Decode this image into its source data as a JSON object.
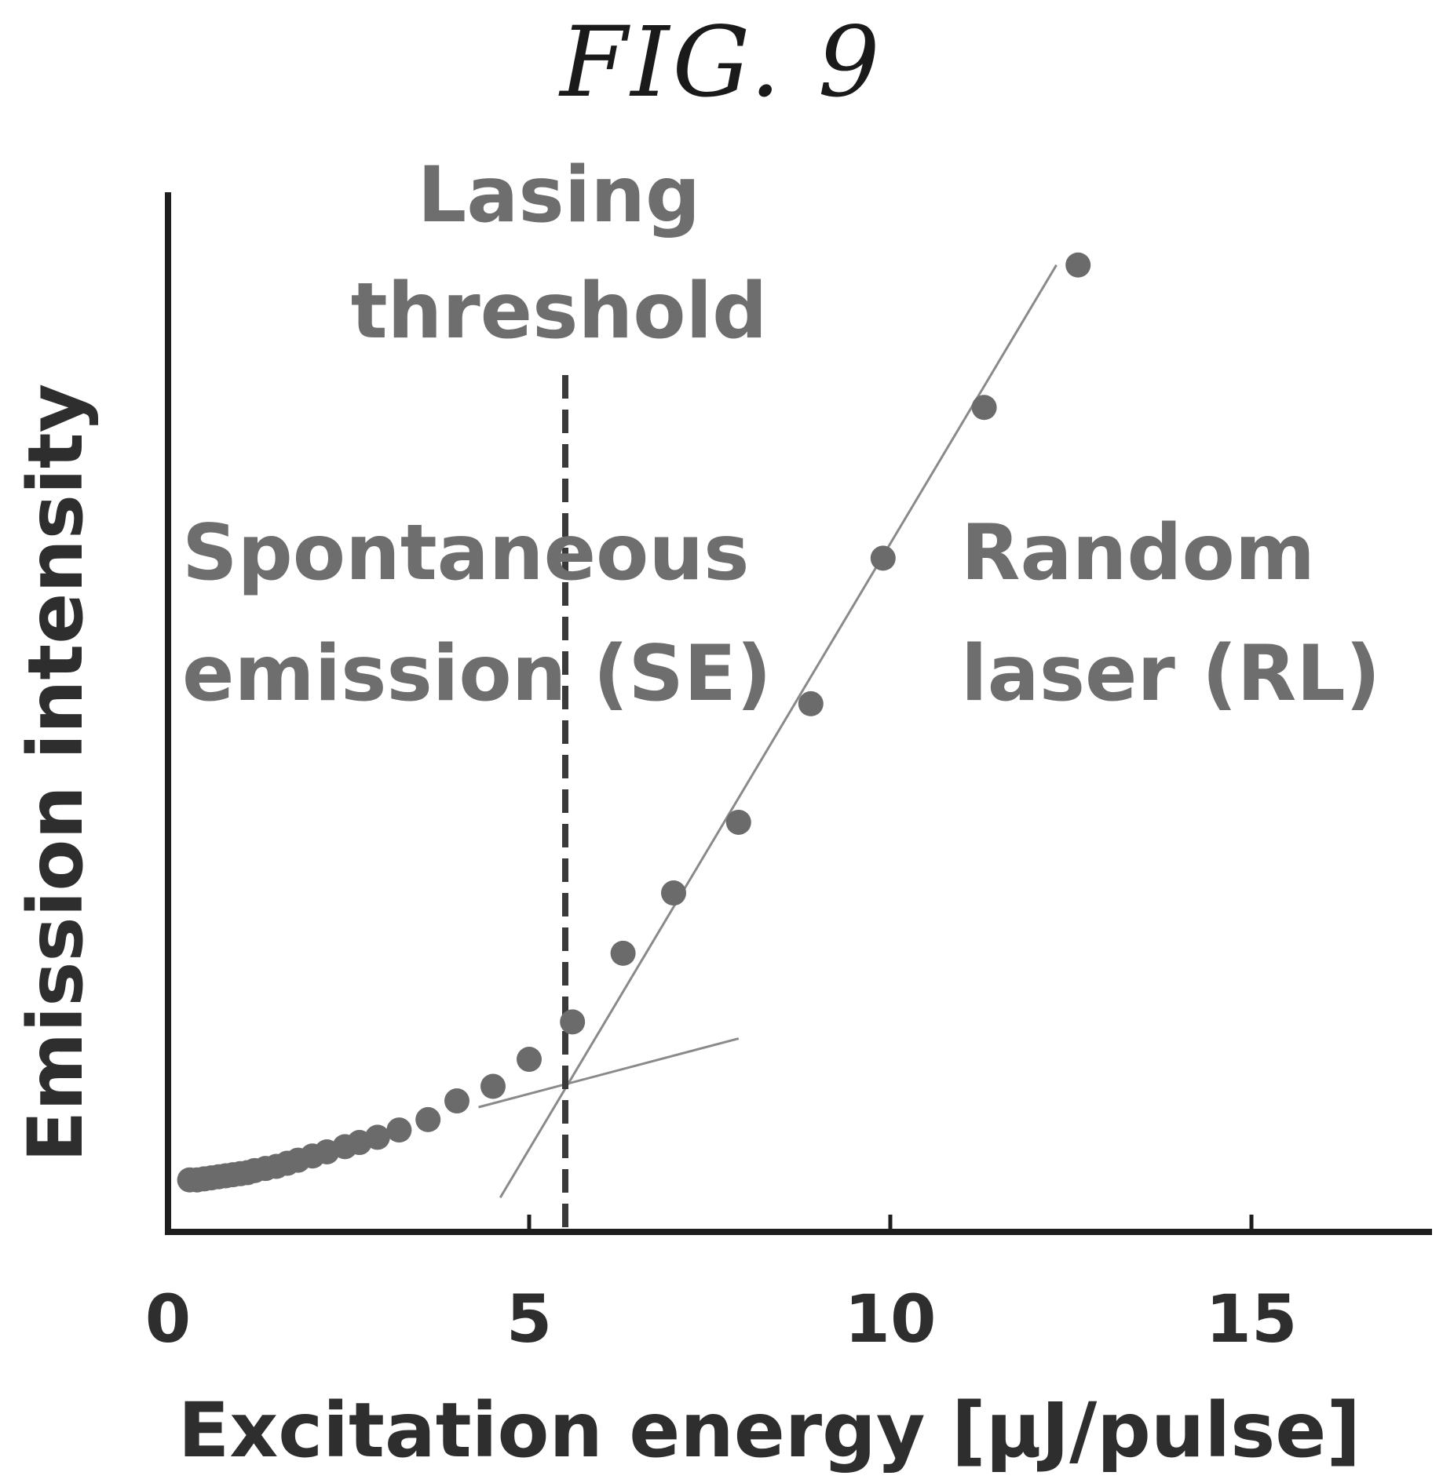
{
  "figure_title": "FIG. 9",
  "chart_data": {
    "type": "scatter",
    "title": "",
    "xlabel": "Excitation energy [μJ/pulse]",
    "ylabel": "Emission intensity",
    "xlim": [
      0,
      17.5
    ],
    "ylim": [
      0,
      100
    ],
    "x_ticks": [
      0,
      5,
      10,
      15
    ],
    "x_tick_labels": [
      "0",
      "5",
      "10",
      "15"
    ],
    "y_ticks_shown": false,
    "grid": false,
    "series": [
      {
        "points": [
          {
            "x": 0.3,
            "y": 5.0
          },
          {
            "x": 0.4,
            "y": 5.0
          },
          {
            "x": 0.5,
            "y": 5.1
          },
          {
            "x": 0.6,
            "y": 5.2
          },
          {
            "x": 0.7,
            "y": 5.3
          },
          {
            "x": 0.8,
            "y": 5.4
          },
          {
            "x": 0.9,
            "y": 5.5
          },
          {
            "x": 1.0,
            "y": 5.6
          },
          {
            "x": 1.1,
            "y": 5.7
          },
          {
            "x": 1.2,
            "y": 5.9
          },
          {
            "x": 1.35,
            "y": 6.1
          },
          {
            "x": 1.5,
            "y": 6.3
          },
          {
            "x": 1.65,
            "y": 6.6
          },
          {
            "x": 1.8,
            "y": 6.9
          },
          {
            "x": 2.0,
            "y": 7.3
          },
          {
            "x": 2.2,
            "y": 7.7
          },
          {
            "x": 2.45,
            "y": 8.2
          },
          {
            "x": 2.65,
            "y": 8.6
          },
          {
            "x": 2.9,
            "y": 9.1
          },
          {
            "x": 3.2,
            "y": 9.8
          },
          {
            "x": 3.6,
            "y": 10.8
          },
          {
            "x": 4.0,
            "y": 12.6
          },
          {
            "x": 4.5,
            "y": 14.0
          },
          {
            "x": 5.0,
            "y": 16.6
          },
          {
            "x": 5.6,
            "y": 20.2
          },
          {
            "x": 6.3,
            "y": 26.8
          },
          {
            "x": 7.0,
            "y": 32.6
          },
          {
            "x": 7.9,
            "y": 39.4
          },
          {
            "x": 8.9,
            "y": 50.8
          },
          {
            "x": 9.9,
            "y": 64.8
          },
          {
            "x": 11.3,
            "y": 79.3
          },
          {
            "x": 12.6,
            "y": 93.0
          }
        ]
      }
    ],
    "fit_lines": [
      {
        "name": "SE fit",
        "x": [
          4.3,
          7.9
        ],
        "y": [
          12.0,
          18.6
        ]
      },
      {
        "name": "RL fit",
        "x": [
          4.6,
          12.3
        ],
        "y": [
          3.3,
          93.0
        ]
      }
    ],
    "threshold_x": 5.5,
    "annotations": {
      "threshold": [
        "Lasing",
        "threshold"
      ],
      "se_region": [
        "Spontaneous",
        "emission (SE)"
      ],
      "rl_region": [
        "Random",
        "laser (RL)"
      ]
    },
    "colors": {
      "points": "#6b6b6b",
      "axis": "#1e1e1e",
      "text": "#6e6e6e",
      "fit": "#8a8a8a"
    }
  }
}
